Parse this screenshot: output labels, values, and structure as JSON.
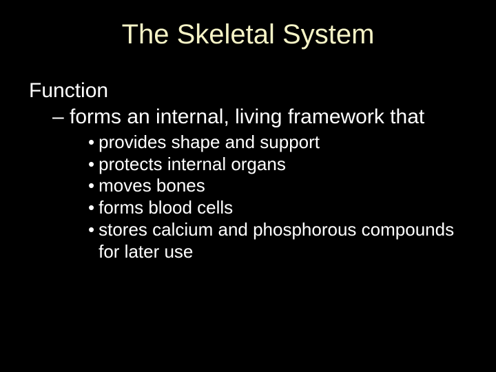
{
  "slide": {
    "background_color": "#000000",
    "title": {
      "text": "The Skeletal System",
      "color": "#f5f3c6",
      "fontsize_pt": 40,
      "align": "center"
    },
    "body": {
      "color": "#ffffff",
      "level0": {
        "text": "Function",
        "fontsize_pt": 30
      },
      "level1": {
        "text": "– forms an internal, living framework that",
        "fontsize_pt": 30
      },
      "level2": {
        "fontsize_pt": 26,
        "bullet_char": "•",
        "items": [
          "provides shape and support",
          "protects internal organs",
          "moves bones",
          "forms blood cells",
          "stores calcium and phosphorous compounds for later use"
        ]
      }
    }
  }
}
